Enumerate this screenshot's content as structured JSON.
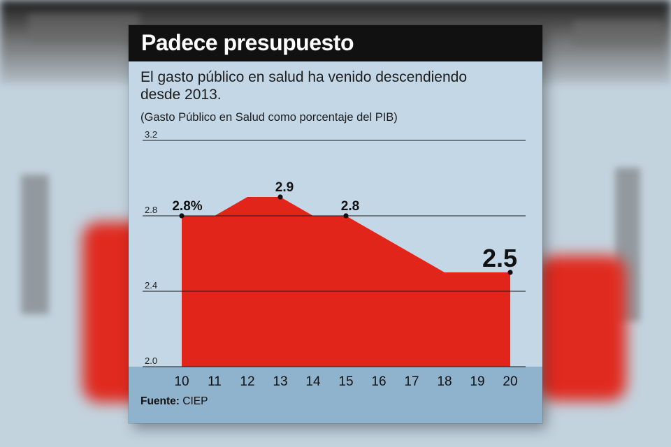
{
  "chart_data": {
    "type": "area",
    "title": "Padece presupuesto",
    "subtitle": "El gasto público en salud ha venido descendiendo desde 2013.",
    "note": "(Gasto Público en Salud como porcentaje del PIB)",
    "x": [
      "10",
      "11",
      "12",
      "13",
      "14",
      "15",
      "16",
      "17",
      "18",
      "19",
      "20"
    ],
    "series": [
      {
        "values": [
          2.8,
          2.8,
          2.9,
          2.9,
          2.8,
          2.8,
          2.7,
          2.6,
          2.5,
          2.5,
          2.5
        ]
      }
    ],
    "ylim": [
      2.0,
      3.2
    ],
    "yticks": [
      "2.0",
      "2.4",
      "2.8",
      "3.2"
    ],
    "annotations": [
      {
        "x": "10",
        "label": "2.8%"
      },
      {
        "x": "13",
        "label": "2.9"
      },
      {
        "x": "15",
        "label": "2.8"
      },
      {
        "x": "20",
        "label": "2.5"
      }
    ],
    "grid": true,
    "colors": {
      "fill": "#e1251b",
      "title_bar": "#111111",
      "panel": "#c3d7e6",
      "axis_band": "#8fb3cd"
    },
    "source_label": "Fuente:",
    "source_value": "CIEP"
  }
}
